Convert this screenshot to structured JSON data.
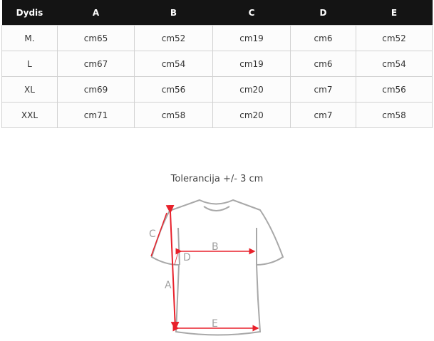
{
  "table": {
    "headers": [
      "Dydis",
      "A",
      "B",
      "C",
      "D",
      "E"
    ],
    "rows": [
      [
        "M.",
        "cm65",
        "cm52",
        "cm19",
        "cm6",
        "cm52"
      ],
      [
        "L",
        "cm67",
        "cm54",
        "cm19",
        "cm6",
        "cm54"
      ],
      [
        "XL",
        "cm69",
        "cm56",
        "cm20",
        "cm7",
        "cm56"
      ],
      [
        "XXL",
        "cm71",
        "cm58",
        "cm20",
        "cm7",
        "cm58"
      ]
    ]
  },
  "diagram": {
    "caption": "Tolerancija +/- 3 cm",
    "labels": {
      "A": "A",
      "B": "B",
      "C": "C",
      "D": "D",
      "E": "E"
    },
    "arrow_color": "#e8212b",
    "outline_color": "#a8a8a8"
  }
}
